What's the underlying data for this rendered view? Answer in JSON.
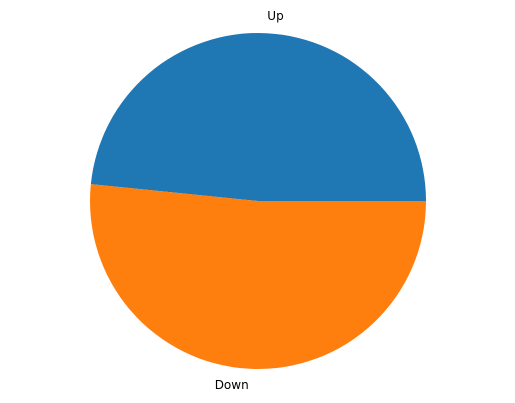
{
  "chart_data": {
    "type": "pie",
    "title": "",
    "slices": [
      {
        "label": "Up",
        "value": 48.4,
        "color": "#1f77b4"
      },
      {
        "label": "Down",
        "value": 51.6,
        "color": "#ff7f0e"
      }
    ],
    "start_angle_deg": 0,
    "direction": "counterclockwise",
    "legend": "none"
  }
}
